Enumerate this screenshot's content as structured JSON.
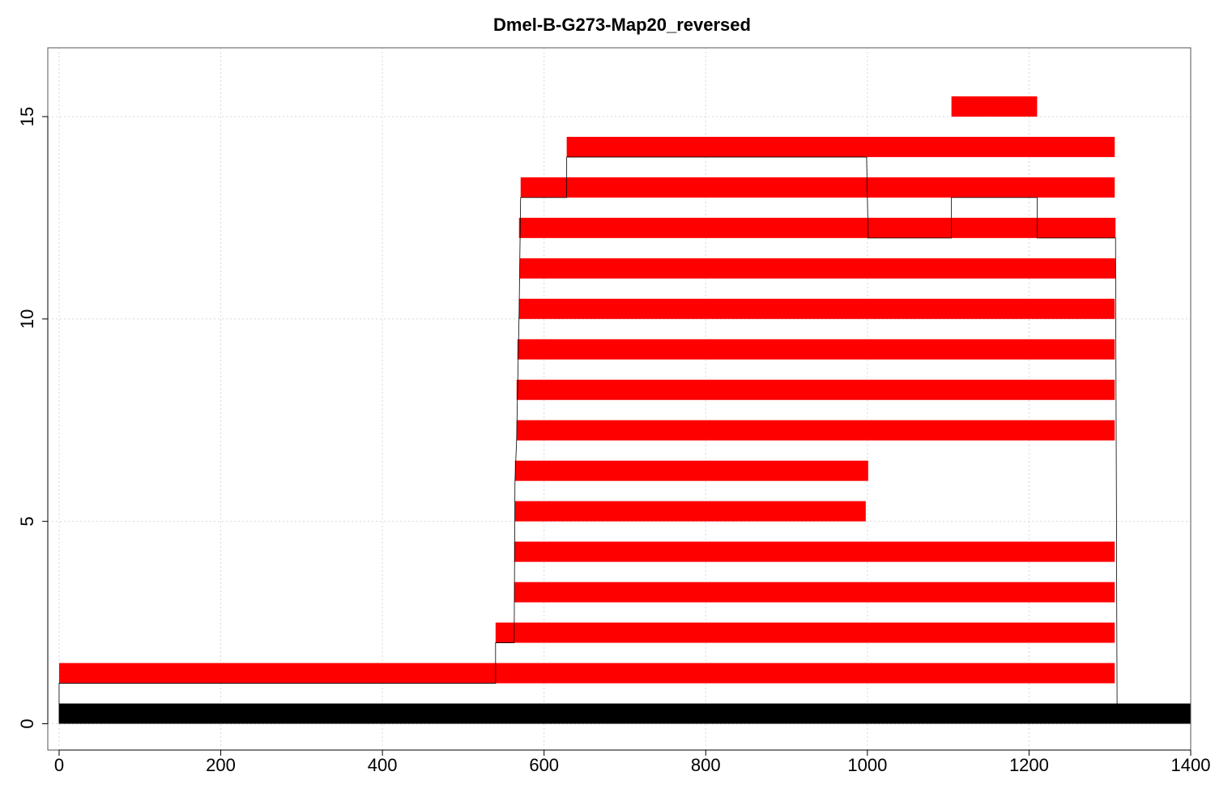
{
  "chart_data": {
    "type": "bar",
    "title": "Dmel-B-G273-Map20_reversed",
    "xlabel": "",
    "ylabel": "",
    "xlim": [
      -14,
      1400
    ],
    "ylim": [
      -0.65,
      16.7
    ],
    "xticks": [
      0,
      200,
      400,
      600,
      800,
      1000,
      1200,
      1400
    ],
    "yticks": [
      0,
      5,
      10,
      15
    ],
    "grid": true,
    "reference": {
      "start": 0,
      "end": 1400,
      "y": 0,
      "color": "#000000"
    },
    "segment_color": "#ff0000",
    "segments": [
      {
        "row": 1,
        "start": 0,
        "end": 1306
      },
      {
        "row": 2,
        "start": 540,
        "end": 1306
      },
      {
        "row": 3,
        "start": 563,
        "end": 1306
      },
      {
        "row": 4,
        "start": 563,
        "end": 1306
      },
      {
        "row": 5,
        "start": 564,
        "end": 998
      },
      {
        "row": 6,
        "start": 564,
        "end": 1001
      },
      {
        "row": 7,
        "start": 566,
        "end": 1306
      },
      {
        "row": 8,
        "start": 566,
        "end": 1306
      },
      {
        "row": 9,
        "start": 567,
        "end": 1306
      },
      {
        "row": 10,
        "start": 569,
        "end": 1306
      },
      {
        "row": 11,
        "start": 570,
        "end": 1307
      },
      {
        "row": 12,
        "start": 569,
        "end": 1307
      },
      {
        "row": 13,
        "start": 571,
        "end": 1306
      },
      {
        "row": 14,
        "start": 628,
        "end": 1306
      },
      {
        "row": 15,
        "start": 1104,
        "end": 1210
      }
    ],
    "path": [
      [
        0,
        0
      ],
      [
        0,
        1
      ],
      [
        540,
        1
      ],
      [
        540,
        2
      ],
      [
        563,
        2
      ],
      [
        564,
        6
      ],
      [
        566,
        7
      ],
      [
        569,
        10
      ],
      [
        571,
        13
      ],
      [
        628,
        13
      ],
      [
        628,
        14
      ],
      [
        999,
        14
      ],
      [
        1001,
        12
      ],
      [
        1104,
        12
      ],
      [
        1104,
        13
      ],
      [
        1210,
        13
      ],
      [
        1210,
        12
      ],
      [
        1307,
        12
      ],
      [
        1309,
        0
      ]
    ]
  }
}
